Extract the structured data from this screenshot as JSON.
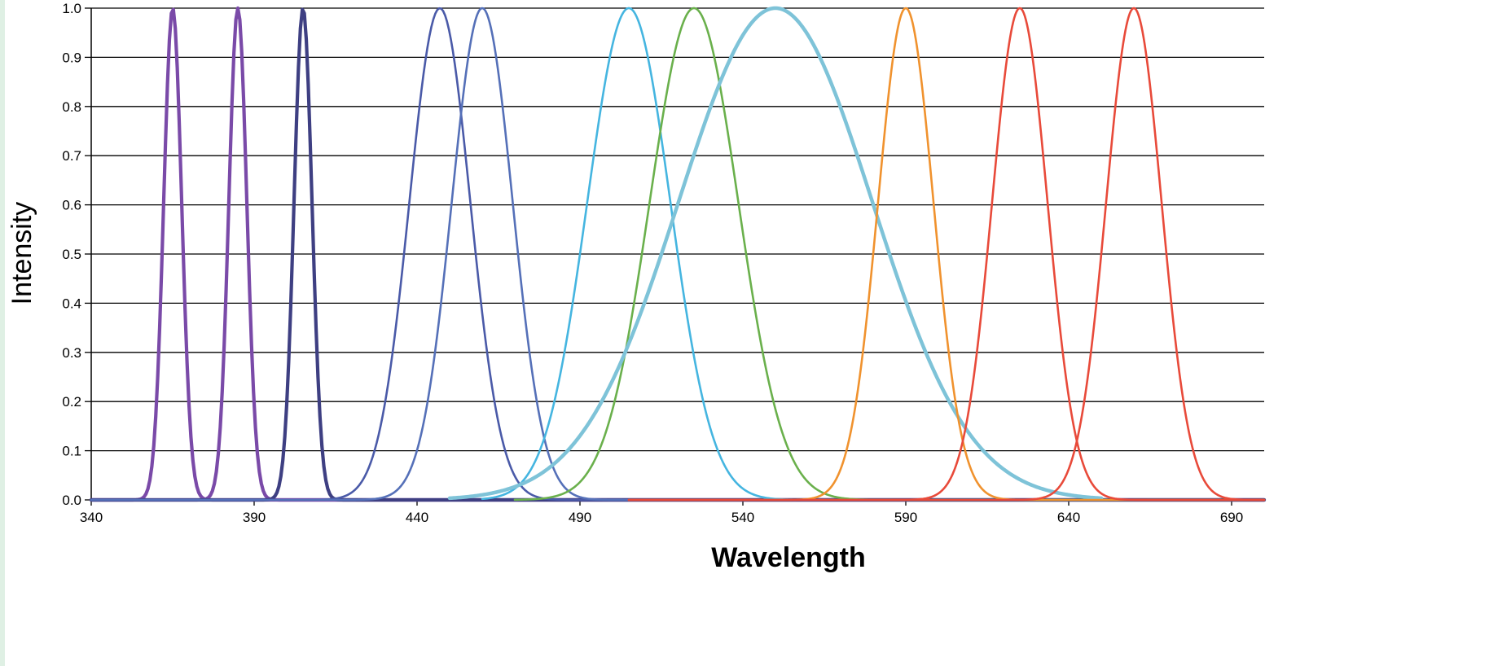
{
  "chart_data": {
    "type": "line",
    "title": "",
    "xlabel": "Wavelength",
    "ylabel": "Intensity",
    "xlim": [
      340,
      700
    ],
    "ylim": [
      0.0,
      1.0
    ],
    "x_ticks": [
      340,
      390,
      440,
      490,
      540,
      590,
      640,
      690
    ],
    "x_tick_labels": [
      "340",
      "390",
      "440",
      "490",
      "540",
      "590",
      "640",
      "690"
    ],
    "y_ticks": [
      0.0,
      0.1,
      0.2,
      0.3,
      0.4,
      0.5,
      0.6,
      0.7,
      0.8,
      0.9,
      1.0
    ],
    "y_tick_labels": [
      "0.0",
      "0.1",
      "0.2",
      "0.3",
      "0.4",
      "0.5",
      "0.6",
      "0.7",
      "0.8",
      "0.9",
      "1.0"
    ],
    "grid": "horizontal",
    "legend": "none",
    "series": [
      {
        "peak": 365,
        "fwhm": 6.5,
        "range": [
          340,
          700
        ],
        "color": "#7a4aa8"
      },
      {
        "peak": 385,
        "fwhm": 6.5,
        "range": [
          340,
          700
        ],
        "color": "#7a4aa8"
      },
      {
        "peak": 405,
        "fwhm": 6.5,
        "range": [
          340,
          700
        ],
        "color": "#3e3f82"
      },
      {
        "peak": 447,
        "fwhm": 22,
        "range": [
          340,
          700
        ],
        "color": "#4a5aa8"
      },
      {
        "peak": 460,
        "fwhm": 22,
        "range": [
          340,
          505
        ],
        "color": "#5570b8"
      },
      {
        "peak": 505,
        "fwhm": 30,
        "range": [
          460,
          652
        ],
        "color": "#45b5e0"
      },
      {
        "peak": 525,
        "fwhm": 32,
        "range": [
          470,
          700
        ],
        "color": "#6ab04c"
      },
      {
        "peak": 550,
        "fwhm": 70,
        "range": [
          450,
          650
        ],
        "color": "#7ec3d8"
      },
      {
        "peak": 590,
        "fwhm": 20,
        "range": [
          505,
          700
        ],
        "color": "#f0922e"
      },
      {
        "peak": 625,
        "fwhm": 20,
        "range": [
          505,
          700
        ],
        "color": "#e84a3a"
      },
      {
        "peak": 660,
        "fwhm": 20,
        "range": [
          505,
          700
        ],
        "color": "#e84a3a"
      }
    ]
  }
}
